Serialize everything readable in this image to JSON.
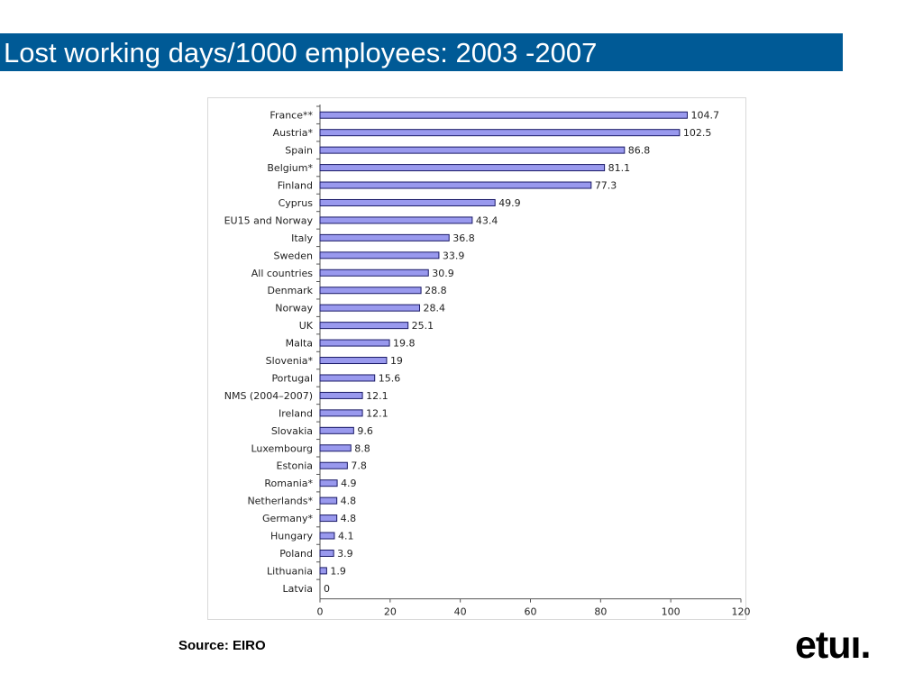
{
  "slide": {
    "title": "Lost working days/1000 employees: 2003 -2007",
    "source": "Source: EIRO",
    "logo": "etuı."
  },
  "colors": {
    "title_bar": "#005a96",
    "bar_fill": "#9999ee",
    "bar_stroke": "#1a1a66"
  },
  "chart_data": {
    "type": "bar",
    "orientation": "horizontal",
    "title": "",
    "xlabel": "",
    "ylabel": "",
    "xlim": [
      0,
      120
    ],
    "x_ticks": [
      0,
      20,
      40,
      60,
      80,
      100,
      120
    ],
    "grid": false,
    "legend": "none",
    "categories": [
      "France**",
      "Austria*",
      "Spain",
      "Belgium*",
      "Finland",
      "Cyprus",
      "EU15 and Norway",
      "Italy",
      "Sweden",
      "All countries",
      "Denmark",
      "Norway",
      "UK",
      "Malta",
      "Slovenia*",
      "Portugal",
      "NMS (2004–2007)",
      "Ireland",
      "Slovakia",
      "Luxembourg",
      "Estonia",
      "Romania*",
      "Netherlands*",
      "Germany*",
      "Hungary",
      "Poland",
      "Lithuania",
      "Latvia"
    ],
    "values": [
      104.7,
      102.5,
      86.8,
      81.1,
      77.3,
      49.9,
      43.4,
      36.8,
      33.9,
      30.9,
      28.8,
      28.4,
      25.1,
      19.8,
      19,
      15.6,
      12.1,
      12.1,
      9.6,
      8.8,
      7.8,
      4.9,
      4.8,
      4.8,
      4.1,
      3.9,
      1.9,
      0
    ],
    "value_labels": [
      "104.7",
      "102.5",
      "86.8",
      "81.1",
      "77.3",
      "49.9",
      "43.4",
      "36.8",
      "33.9",
      "30.9",
      "28.8",
      "28.4",
      "25.1",
      "19.8",
      "19",
      "15.6",
      "12.1",
      "12.1",
      "9.6",
      "8.8",
      "7.8",
      "4.9",
      "4.8",
      "4.8",
      "4.1",
      "3.9",
      "1.9",
      "0"
    ]
  }
}
